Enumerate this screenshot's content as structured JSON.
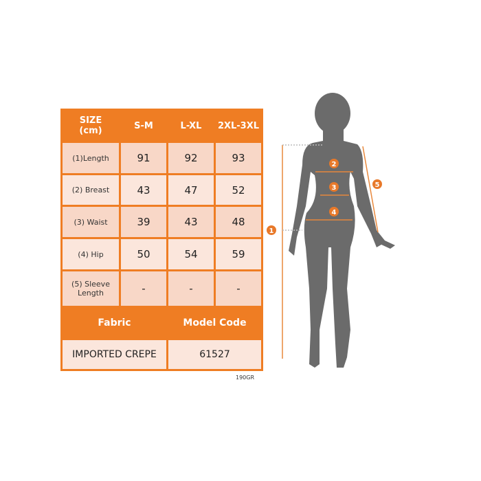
{
  "table": {
    "header": [
      "SIZE\n(cm)",
      "S-M",
      "L-XL",
      "2XL-3XL"
    ],
    "header_size_line1": "SIZE",
    "header_size_line2": "(cm)",
    "rows": [
      {
        "label": "(1)Length",
        "values": [
          "91",
          "92",
          "93"
        ]
      },
      {
        "label": "(2) Breast",
        "values": [
          "43",
          "47",
          "52"
        ]
      },
      {
        "label": "(3) Waist",
        "values": [
          "39",
          "43",
          "48"
        ]
      },
      {
        "label": "(4) Hip",
        "values": [
          "50",
          "54",
          "59"
        ]
      },
      {
        "label": "(5) Sleeve Length",
        "values": [
          "-",
          "-",
          "-"
        ]
      }
    ],
    "fabric_label": "Fabric",
    "model_code_label": "Model Code",
    "fabric_value": "IMPORTED CREPE",
    "model_code_value": "61527"
  },
  "weight_note": "190GR",
  "figure": {
    "markers": [
      "1",
      "2",
      "3",
      "4",
      "5"
    ]
  },
  "colors": {
    "accent": "#ef7d23",
    "row_dark": "#f8d7c7",
    "row_light": "#fbe6dc",
    "silhouette": "#6b6b6b"
  }
}
